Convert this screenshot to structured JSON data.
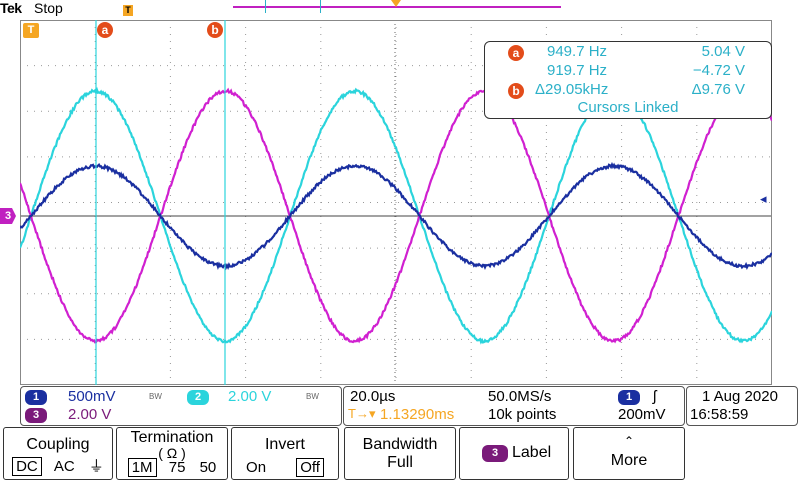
{
  "header": {
    "brand": "Tek",
    "status": "Stop",
    "trigger_marker": "T"
  },
  "colors": {
    "ch1": "#1a2fa0",
    "ch2": "#2bd4dc",
    "ch3": "#d020d0",
    "cursor": "#2bd4dc",
    "cursor_badge": "#e34c1a",
    "trigger": "#f5a623"
  },
  "display": {
    "trigger_tag": "T",
    "cursor_a_tag": "a",
    "cursor_b_tag": "b",
    "ch3_marker": "3",
    "ch1_ground_marker": "◂"
  },
  "readout": {
    "a_label": "a",
    "b_label": "b",
    "a_freq": "949.7 Hz",
    "a_volt": "5.04 V",
    "b_freq": "919.7 Hz",
    "b_volt": "−4.72 V",
    "delta_freq": "Δ29.05kHz",
    "delta_volt": "Δ9.76 V",
    "linked": "Cursors Linked"
  },
  "channels": {
    "ch1_label": "1",
    "ch1_scale": "500mV",
    "ch1_bw": "BW",
    "ch2_label": "2",
    "ch2_scale": "2.00 V",
    "ch2_bw": "BW",
    "ch3_label": "3",
    "ch3_scale": "2.00 V"
  },
  "horizontal": {
    "timebase": "20.0µs",
    "sample_rate": "50.0MS/s",
    "trigger_icon": "T→▾",
    "trigger_pos": "1.13290ms",
    "record_length": "10k points",
    "trig_channel": "1",
    "trig_slope": "ʃ",
    "trig_level": "200mV"
  },
  "datetime": {
    "date": "1 Aug 2020",
    "time": "16:58:59"
  },
  "menu": {
    "coupling": {
      "title": "Coupling",
      "dc": "DC",
      "ac": "AC",
      "gnd": "⏚"
    },
    "termination": {
      "title": "Termination",
      "sub": "( Ω )",
      "opt1": "1M",
      "opt2": "75",
      "opt3": "50"
    },
    "invert": {
      "title": "Invert",
      "on": "On",
      "off": "Off"
    },
    "bandwidth": {
      "title": "Bandwidth",
      "value": "Full"
    },
    "label": {
      "badge": "3",
      "title": "Label"
    },
    "more": {
      "icon": "⌃",
      "title": "More"
    }
  }
}
